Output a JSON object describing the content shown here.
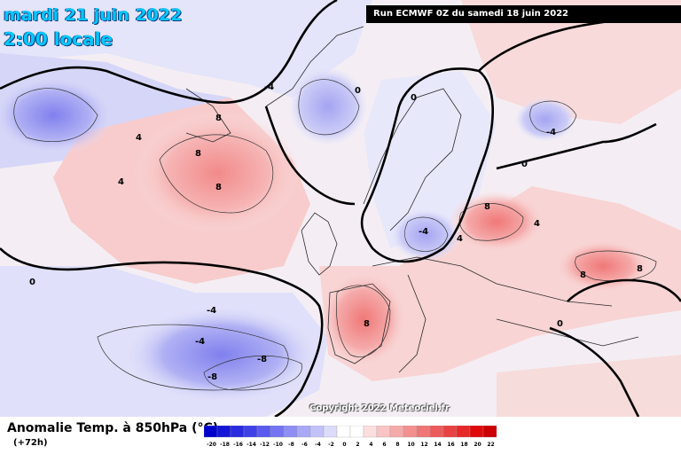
{
  "header": {
    "date": "mardi 21 juin 2022",
    "time": "2:00 locale",
    "run": "Run ECMWF 0Z du samedi 18 juin 2022"
  },
  "copyright": "Copyright 2022 Meteociel.fr",
  "legend": {
    "title": "Anomalie Temp. à 850hPa (°C)",
    "lead": "(+72h)",
    "ticks": [
      "-20",
      "-18",
      "-16",
      "-14",
      "-12",
      "-10",
      "-8",
      "-6",
      "-4",
      "-2",
      "0",
      "2",
      "4",
      "6",
      "8",
      "10",
      "12",
      "14",
      "16",
      "18",
      "20",
      "22"
    ],
    "colors": [
      "#0000cc",
      "#1414d6",
      "#2a2ae0",
      "#4040e8",
      "#5a5aee",
      "#7474f2",
      "#8e8ef4",
      "#a8a8f6",
      "#c2c2f8",
      "#dcdcfa",
      "#ffffff",
      "#ffffff",
      "#fbdede",
      "#f8c4c4",
      "#f5aaaa",
      "#f29090",
      "#ef7676",
      "#ec5c5c",
      "#e94242",
      "#e62828",
      "#e00a0a",
      "#cc0000"
    ]
  },
  "isolines": [
    {
      "id": "iso-1",
      "label": "0"
    },
    {
      "id": "iso-2",
      "label": "0"
    },
    {
      "id": "iso-3",
      "label": "0"
    },
    {
      "id": "iso-4",
      "label": "0"
    },
    {
      "id": "iso-5",
      "label": "4"
    },
    {
      "id": "iso-6",
      "label": "4"
    },
    {
      "id": "iso-7",
      "label": "8"
    },
    {
      "id": "iso-8",
      "label": "8"
    },
    {
      "id": "iso-9",
      "label": "8"
    },
    {
      "id": "iso-10",
      "label": "-4"
    },
    {
      "id": "iso-11",
      "label": "-4"
    },
    {
      "id": "iso-12",
      "label": "-4"
    },
    {
      "id": "iso-13",
      "label": "-8"
    },
    {
      "id": "iso-14",
      "label": "-8"
    },
    {
      "id": "iso-15",
      "label": "8"
    },
    {
      "id": "iso-16",
      "label": "8"
    },
    {
      "id": "iso-17",
      "label": "8"
    },
    {
      "id": "iso-18",
      "label": "8"
    },
    {
      "id": "iso-19",
      "label": "-4"
    },
    {
      "id": "iso-20",
      "label": "-4"
    },
    {
      "id": "iso-21",
      "label": "0"
    },
    {
      "id": "iso-22",
      "label": "0"
    },
    {
      "id": "iso-23",
      "label": "4"
    },
    {
      "id": "iso-24",
      "label": "4"
    }
  ]
}
